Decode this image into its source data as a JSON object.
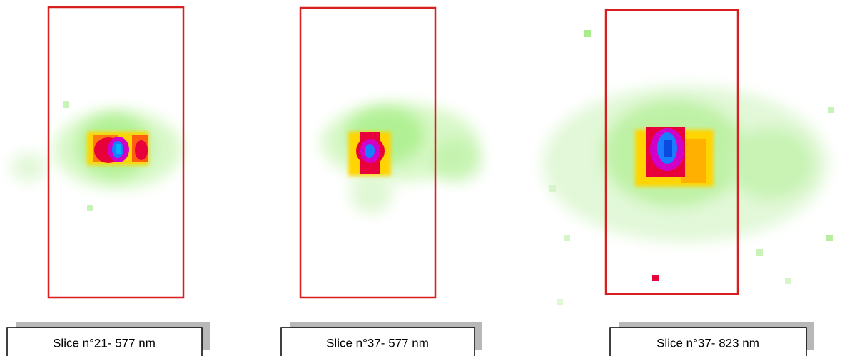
{
  "panels": [
    {
      "label": "Slice n°21- 577 nm"
    },
    {
      "label": "Slice n°37- 577 nm"
    },
    {
      "label": "Slice n°37- 823 nm"
    }
  ]
}
